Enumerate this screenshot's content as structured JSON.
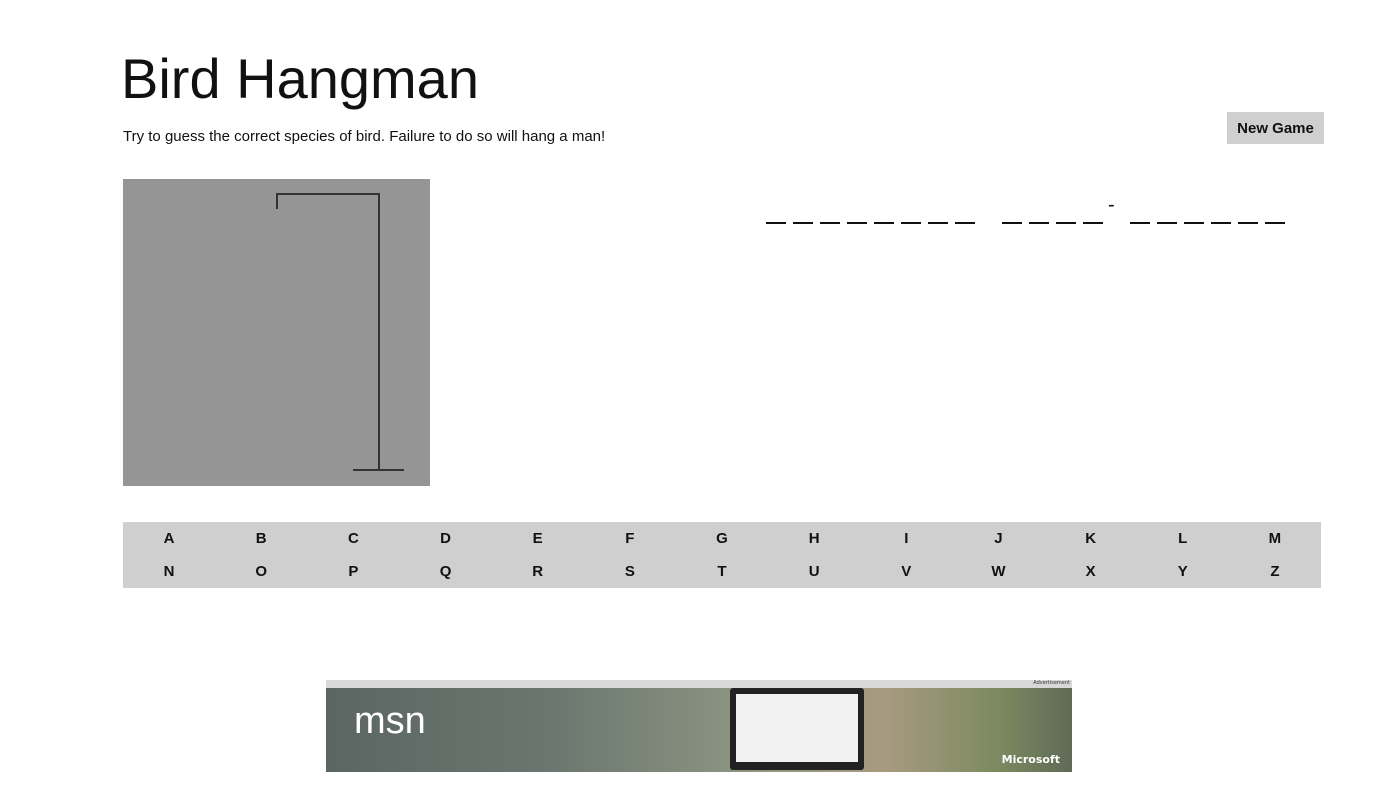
{
  "header": {
    "title": "Bird Hangman",
    "subtitle": "Try to guess the correct species of bird. Failure to do so will hang a man!"
  },
  "toolbar": {
    "new_game_label": "New Game"
  },
  "word": {
    "pattern": [
      "_",
      "_",
      "_",
      "_",
      "_",
      "_",
      "_",
      "_",
      " ",
      "_",
      "_",
      "_",
      "_",
      "-",
      "_",
      "_",
      "_",
      "_",
      "_",
      "_"
    ]
  },
  "hangman": {
    "wrong_guesses": 0
  },
  "keyboard": {
    "keys": [
      "A",
      "B",
      "C",
      "D",
      "E",
      "F",
      "G",
      "H",
      "I",
      "J",
      "K",
      "L",
      "M",
      "N",
      "O",
      "P",
      "Q",
      "R",
      "S",
      "T",
      "U",
      "V",
      "W",
      "X",
      "Y",
      "Z"
    ]
  },
  "ad": {
    "label": "Advertisement",
    "brand": "msn",
    "sponsor": "Microsoft"
  },
  "colors": {
    "gallows_bg": "#959595",
    "keyboard_bg": "#cfcfcf",
    "button_bg": "#cfcfcf"
  }
}
